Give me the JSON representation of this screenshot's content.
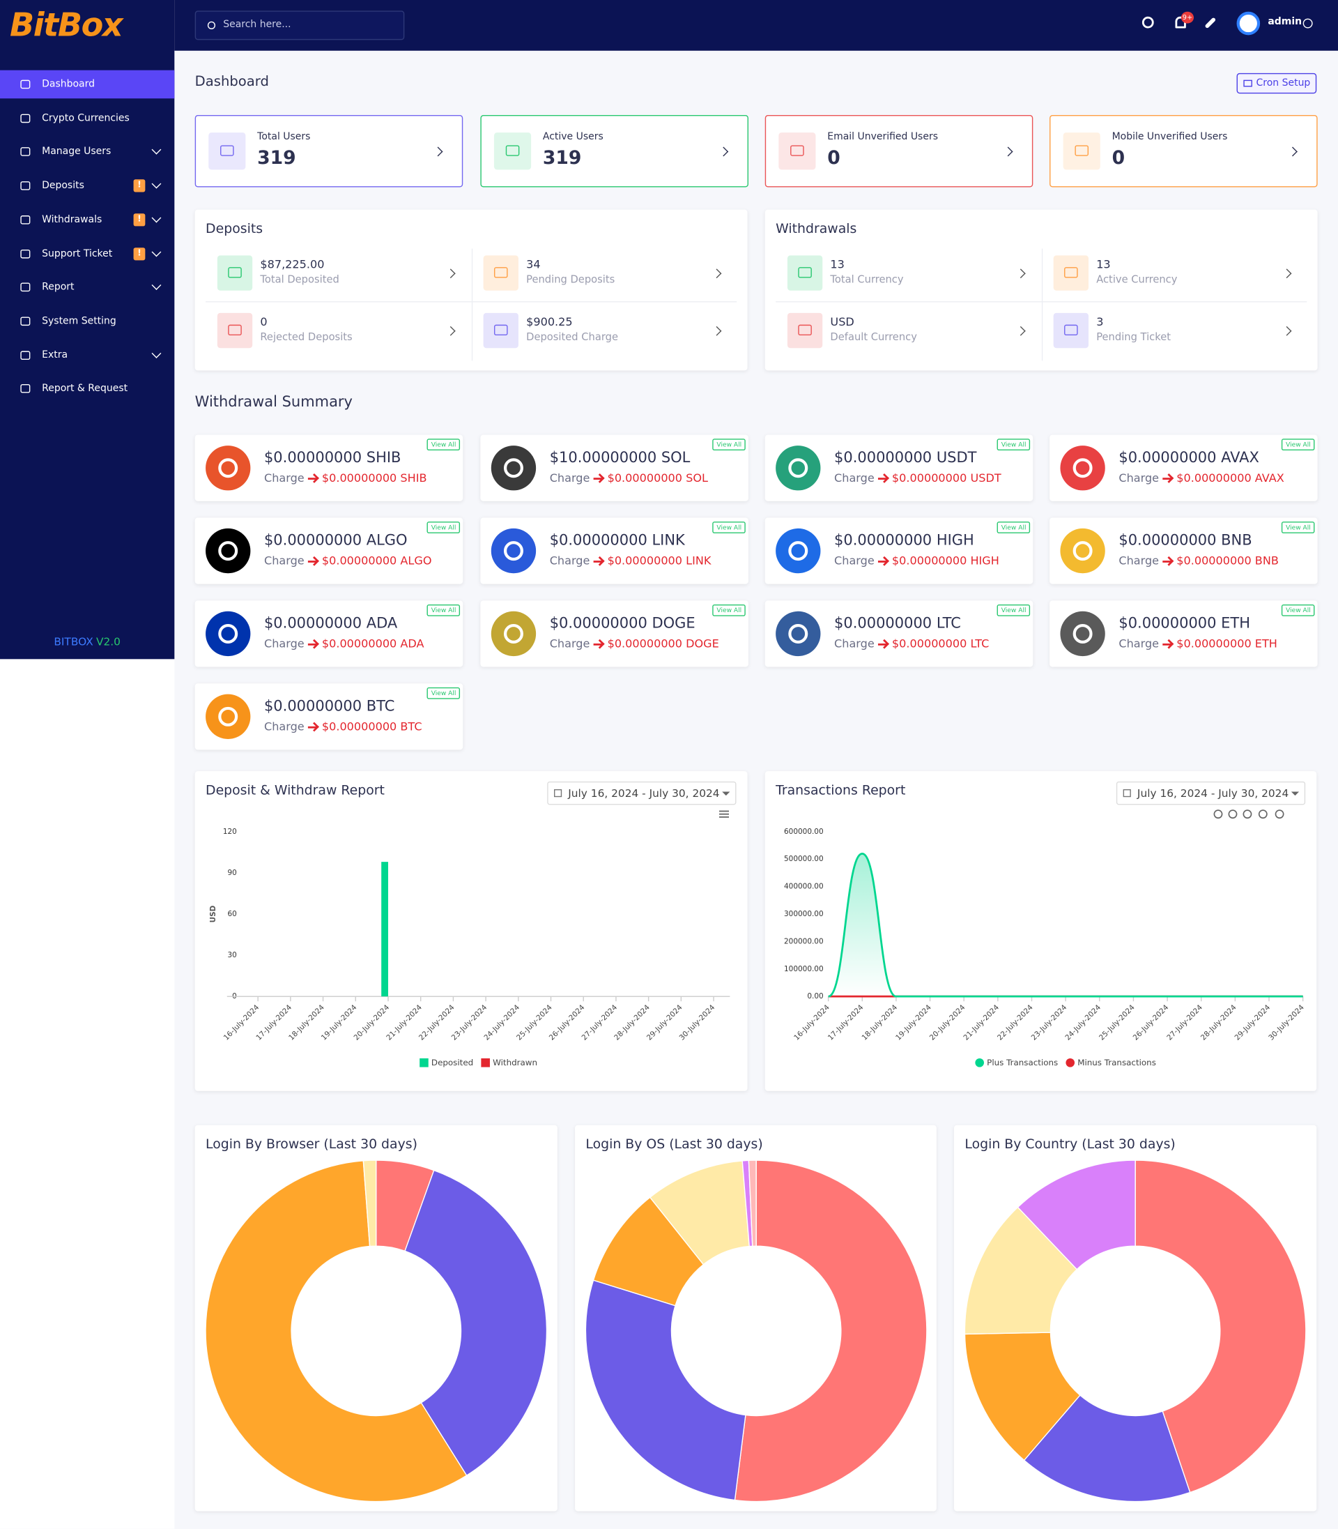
{
  "sidebar": {
    "logo": "BitBox",
    "menu": [
      {
        "label": "Dashboard",
        "active": true
      },
      {
        "label": "Crypto Currencies"
      },
      {
        "label": "Manage Users",
        "submenu": true
      },
      {
        "label": "Deposits",
        "badge": "!",
        "submenu": true
      },
      {
        "label": "Withdrawals",
        "badge": "!",
        "submenu": true
      },
      {
        "label": "Support Ticket",
        "badge": "!",
        "submenu": true
      },
      {
        "label": "Report",
        "submenu": true
      },
      {
        "label": "System Setting"
      },
      {
        "label": "Extra",
        "submenu": true
      },
      {
        "label": "Report & Request"
      }
    ],
    "version_name": "BITBOX",
    "version_number": "V2.0"
  },
  "header": {
    "search_placeholder": "Search here...",
    "notification_count": "9+",
    "user": "admin"
  },
  "dashboard": {
    "title": "Dashboard",
    "cron_button": "Cron Setup",
    "stats": [
      {
        "label": "Total Users",
        "value": 319,
        "color": "#7367f0"
      },
      {
        "label": "Active Users",
        "value": 319,
        "color": "#28c76f"
      },
      {
        "label": "Email Unverified Users",
        "value": 0,
        "color": "#ea5455"
      },
      {
        "label": "Mobile Unverified Users",
        "value": 0,
        "color": "#ff9f43"
      }
    ]
  },
  "deposits": {
    "title": "Deposits",
    "items": [
      {
        "value": "$87,225.00",
        "label": "Total Deposited",
        "color": "#28c76f"
      },
      {
        "value": "34",
        "label": "Pending Deposits",
        "color": "#ff9f43"
      },
      {
        "value": "0",
        "label": "Rejected Deposits",
        "color": "#ea5455"
      },
      {
        "value": "$900.25",
        "label": "Deposited Charge",
        "color": "#7367f0"
      }
    ]
  },
  "withdrawals": {
    "title": "Withdrawals",
    "items": [
      {
        "value": "13",
        "label": "Total Currency",
        "color": "#28c76f"
      },
      {
        "value": "13",
        "label": "Active Currency",
        "color": "#ff9f43"
      },
      {
        "value": "USD",
        "label": "Default Currency",
        "color": "#ea5455"
      },
      {
        "value": "3",
        "label": "Pending Ticket",
        "color": "#7367f0"
      }
    ]
  },
  "withdrawal_summary": {
    "title": "Withdrawal Summary",
    "charge_label": "Charge",
    "view_all": "View All",
    "coins": [
      {
        "amount": "$0.00000000 SHIB",
        "charge": "$0.00000000 SHIB",
        "color": "#e8542b"
      },
      {
        "amount": "$10.00000000 SOL",
        "charge": "$0.00000000 SOL",
        "color": "#3a3a3a"
      },
      {
        "amount": "$0.00000000 USDT",
        "charge": "$0.00000000 USDT",
        "color": "#26a17b"
      },
      {
        "amount": "$0.00000000 AVAX",
        "charge": "$0.00000000 AVAX",
        "color": "#e84142"
      },
      {
        "amount": "$0.00000000 ALGO",
        "charge": "$0.00000000 ALGO",
        "color": "#000000"
      },
      {
        "amount": "$0.00000000 LINK",
        "charge": "$0.00000000 LINK",
        "color": "#2a5ada"
      },
      {
        "amount": "$0.00000000 HIGH",
        "charge": "$0.00000000 HIGH",
        "color": "#1e6be6"
      },
      {
        "amount": "$0.00000000 BNB",
        "charge": "$0.00000000 BNB",
        "color": "#f3ba2f"
      },
      {
        "amount": "$0.00000000 ADA",
        "charge": "$0.00000000 ADA",
        "color": "#0033ad"
      },
      {
        "amount": "$0.00000000 DOGE",
        "charge": "$0.00000000 DOGE",
        "color": "#c2a633"
      },
      {
        "amount": "$0.00000000 LTC",
        "charge": "$0.00000000 LTC",
        "color": "#345d9d"
      },
      {
        "amount": "$0.00000000 ETH",
        "charge": "$0.00000000 ETH",
        "color": "#5a5a5a"
      },
      {
        "amount": "$0.00000000 BTC",
        "charge": "$0.00000000 BTC",
        "color": "#f7931a"
      }
    ]
  },
  "chart_data": [
    {
      "type": "bar",
      "title": "Deposit & Withdraw Report",
      "date_range": "July 16, 2024 - July 30, 2024",
      "ylabel": "USD",
      "categories": [
        "16-July-2024",
        "17-July-2024",
        "18-July-2024",
        "19-July-2024",
        "20-July-2024",
        "21-July-2024",
        "22-July-2024",
        "23-July-2024",
        "24-July-2024",
        "25-July-2024",
        "26-July-2024",
        "27-July-2024",
        "28-July-2024",
        "29-July-2024",
        "30-July-2024"
      ],
      "series": [
        {
          "name": "Deposited",
          "color": "#00d68f",
          "values": [
            0,
            0,
            0,
            0,
            98,
            0,
            0,
            0,
            0,
            0,
            0,
            0,
            0,
            0,
            0
          ]
        },
        {
          "name": "Withdrawn",
          "color": "#e3262e",
          "values": [
            0,
            0,
            0,
            0,
            0,
            0,
            0,
            0,
            0,
            0,
            0,
            0,
            0,
            0,
            0
          ]
        }
      ],
      "ylim": [
        0,
        120
      ],
      "yticks": [
        0,
        30,
        60,
        90,
        120
      ],
      "grid": false,
      "legend": "bottom"
    },
    {
      "type": "line",
      "title": "Transactions Report",
      "date_range": "July 16, 2024 - July 30, 2024",
      "categories": [
        "16-July-2024",
        "17-July-2024",
        "18-July-2024",
        "19-July-2024",
        "20-July-2024",
        "21-July-2024",
        "22-July-2024",
        "23-July-2024",
        "24-July-2024",
        "25-July-2024",
        "26-July-2024",
        "27-July-2024",
        "28-July-2024",
        "29-July-2024",
        "30-July-2024"
      ],
      "series": [
        {
          "name": "Plus Transactions",
          "color": "#00d68f",
          "values": [
            0,
            520000,
            0,
            0,
            0,
            0,
            0,
            0,
            0,
            0,
            0,
            0,
            0,
            0,
            0
          ]
        },
        {
          "name": "Minus Transactions",
          "color": "#e3262e",
          "values": [
            0,
            0,
            0,
            0,
            0,
            0,
            0,
            0,
            0,
            0,
            0,
            0,
            0,
            0,
            0
          ]
        }
      ],
      "ylim": [
        0,
        600000
      ],
      "yticks": [
        {
          "value": 0,
          "label": "0.00"
        },
        {
          "value": 100000,
          "label": "100000.00"
        },
        {
          "value": 200000,
          "label": "200000.00"
        },
        {
          "value": 300000,
          "label": "300000.00"
        },
        {
          "value": 400000,
          "label": "400000.00"
        },
        {
          "value": 500000,
          "label": "500000.00"
        },
        {
          "value": 600000,
          "label": "600000.00"
        }
      ],
      "grid": false,
      "legend": "bottom"
    },
    {
      "type": "donut",
      "title": "Login By Browser (Last 30 days)",
      "values": [
        5.5,
        35.6,
        57.7,
        1.2
      ],
      "colors": [
        "#ff7675",
        "#6c5ce7",
        "#ffa62b",
        "#ffeaa7"
      ]
    },
    {
      "type": "donut",
      "title": "Login By OS (Last 30 days)",
      "values": [
        52,
        27.8,
        9.5,
        9.4,
        0.6,
        0.7
      ],
      "colors": [
        "#ff7675",
        "#6c5ce7",
        "#ffa62b",
        "#ffeaa7",
        "#d980fa",
        "#ffb8b8"
      ]
    },
    {
      "type": "donut",
      "title": "Login By Country (Last 30 days)",
      "values": [
        44.8,
        16.5,
        13.4,
        13.2,
        12.1
      ],
      "colors": [
        "#ff7675",
        "#6c5ce7",
        "#ffa62b",
        "#ffeaa7",
        "#d980fa"
      ]
    }
  ]
}
